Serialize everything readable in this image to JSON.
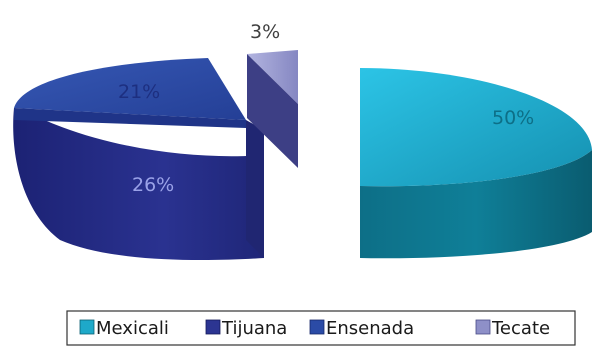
{
  "chart_data": {
    "type": "pie",
    "variant": "3d-exploded",
    "title": "",
    "categories": [
      "Mexicali",
      "Tijuana",
      "Ensenada",
      "Tecate"
    ],
    "values": [
      50,
      26,
      21,
      3
    ],
    "value_labels": [
      "50%",
      "26%",
      "21%",
      "3%"
    ],
    "legend_labels": [
      "Mexicali",
      "Tijuana",
      "Ensenada",
      "Tecate"
    ],
    "legend_position": "bottom",
    "colors": {
      "Mexicali": "#1ea9c9",
      "Tijuana": "#2c3592",
      "Ensenada": "#2b4ba6",
      "Tecate": "#8e90c8"
    }
  }
}
